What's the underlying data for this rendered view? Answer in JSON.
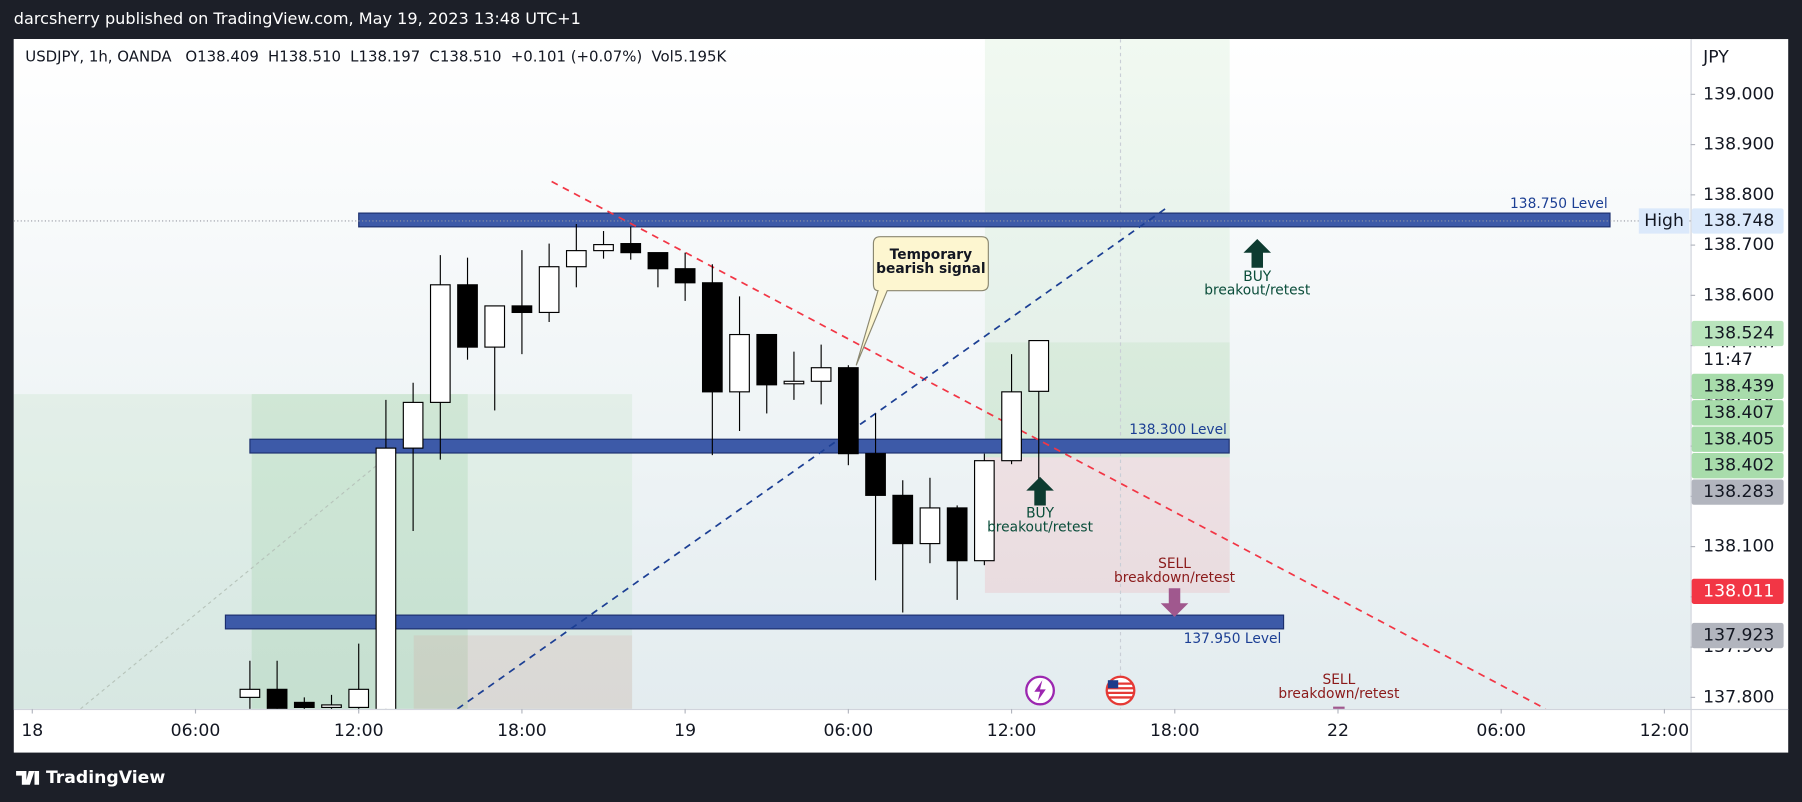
{
  "header": {
    "published": "darcsherry published on TradingView.com, May 19, 2023 13:48 UTC+1"
  },
  "chart_data": {
    "type": "candlestick",
    "legend": [
      "USDJPY, 1h, OANDA",
      "O138.409",
      "H138.510",
      "L138.197",
      "C138.510",
      "+0.101 (+0.07%)",
      "Vol5.195K"
    ],
    "currency": "JPY",
    "x": [
      8,
      9,
      10,
      11,
      12,
      13,
      14,
      15,
      16,
      17,
      18,
      19,
      20,
      21,
      22,
      23,
      24,
      25,
      26,
      27,
      28,
      29,
      30,
      31,
      32,
      33,
      34,
      35,
      36,
      37
    ],
    "open": [
      137.8,
      137.816,
      137.79,
      137.78,
      137.78,
      137.75,
      138.296,
      138.387,
      138.621,
      138.497,
      138.579,
      138.566,
      138.657,
      138.689,
      138.703,
      138.685,
      138.653,
      138.625,
      138.408,
      138.522,
      138.424,
      138.429,
      138.456,
      138.285,
      138.202,
      138.106,
      138.177,
      138.072,
      138.271,
      138.409
    ],
    "high": [
      137.873,
      137.873,
      137.8,
      137.805,
      137.907,
      138.392,
      138.426,
      138.68,
      138.675,
      138.579,
      138.69,
      138.703,
      138.742,
      138.728,
      138.737,
      138.685,
      138.685,
      138.662,
      138.598,
      138.522,
      138.488,
      138.502,
      138.461,
      138.365,
      138.232,
      138.237,
      138.182,
      138.285,
      138.483,
      138.51
    ],
    "low": [
      137.76,
      137.75,
      137.77,
      137.77,
      137.76,
      137.73,
      138.131,
      138.273,
      138.472,
      138.371,
      138.483,
      138.547,
      138.616,
      138.673,
      138.671,
      138.616,
      138.589,
      138.282,
      138.33,
      138.365,
      138.392,
      138.383,
      138.262,
      138.033,
      137.969,
      138.067,
      137.994,
      138.063,
      138.264,
      138.197
    ],
    "close": [
      137.816,
      137.77,
      137.78,
      137.785,
      137.816,
      138.296,
      138.387,
      138.621,
      138.497,
      138.579,
      138.566,
      138.657,
      138.689,
      138.701,
      138.685,
      138.653,
      138.625,
      138.408,
      138.522,
      138.422,
      138.429,
      138.456,
      138.285,
      138.202,
      138.106,
      138.177,
      138.072,
      138.271,
      138.408,
      138.51
    ],
    "up_color": "#ffffff",
    "down_color": "#000000",
    "xlim": [
      -0.68,
      60.96
    ],
    "xticks": [
      {
        "value": 0,
        "label": "18"
      },
      {
        "value": 6,
        "label": "06:00"
      },
      {
        "value": 12,
        "label": "12:00"
      },
      {
        "value": 18,
        "label": "18:00"
      },
      {
        "value": 24,
        "label": "19"
      },
      {
        "value": 30,
        "label": "06:00"
      },
      {
        "value": 36,
        "label": "12:00"
      },
      {
        "value": 42,
        "label": "18:00"
      },
      {
        "value": 48,
        "label": "22"
      },
      {
        "value": 54,
        "label": "06:00"
      },
      {
        "value": 60,
        "label": "12:00"
      }
    ],
    "ylim": [
      137.777,
      139.11
    ],
    "yticks": [
      {
        "value": 137.8,
        "label": "137.800"
      },
      {
        "value": 137.9,
        "label": "137.900"
      },
      {
        "value": 138,
        "label": "138.000"
      },
      {
        "value": 138.1,
        "label": "138.100"
      },
      {
        "value": 138.2,
        "label": "138.200"
      },
      {
        "value": 138.3,
        "label": "138.300"
      },
      {
        "value": 138.4,
        "label": "138.400"
      },
      {
        "value": 138.5,
        "label": "138.500"
      },
      {
        "value": 138.6,
        "label": "138.600"
      },
      {
        "value": 138.7,
        "label": "138.700"
      },
      {
        "value": 138.8,
        "label": "138.800"
      },
      {
        "value": 138.9,
        "label": "138.900"
      },
      {
        "value": 139,
        "label": "139.000"
      }
    ],
    "levels": [
      {
        "value": 138.75,
        "label": "138.750 Level"
      },
      {
        "value": 138.3,
        "label": "138.300 Level"
      },
      {
        "value": 137.95,
        "label": "137.950 Level"
      }
    ],
    "price_tags": [
      {
        "value": 138.748,
        "color": "#dbe9fb",
        "name": "High"
      },
      {
        "value": 138.524,
        "color": "#b9e4bc"
      },
      {
        "value": 138.439,
        "color": "#a8dcab"
      },
      {
        "value": 138.407,
        "color": "#a8dcab"
      },
      {
        "value": 138.405,
        "color": "#a8dcab"
      },
      {
        "value": 138.402,
        "color": "#a8dcab"
      },
      {
        "value": 138.283,
        "color": "#b2b5be"
      },
      {
        "value": 138.011,
        "color": "#f23645"
      },
      {
        "value": 137.923,
        "color": "#b2b5be"
      }
    ],
    "countdown": "11:47",
    "callout": [
      "Temporary",
      "bearish signal"
    ],
    "signals": [
      {
        "side": "BUY",
        "text": "breakout/retest"
      },
      {
        "side": "BUY",
        "text": "breakout/retest"
      },
      {
        "side": "SELL",
        "text": "breakdown/retest"
      },
      {
        "side": "SELL",
        "text": "breakdown/retest"
      }
    ]
  },
  "footer": {
    "brand": "TradingView"
  }
}
